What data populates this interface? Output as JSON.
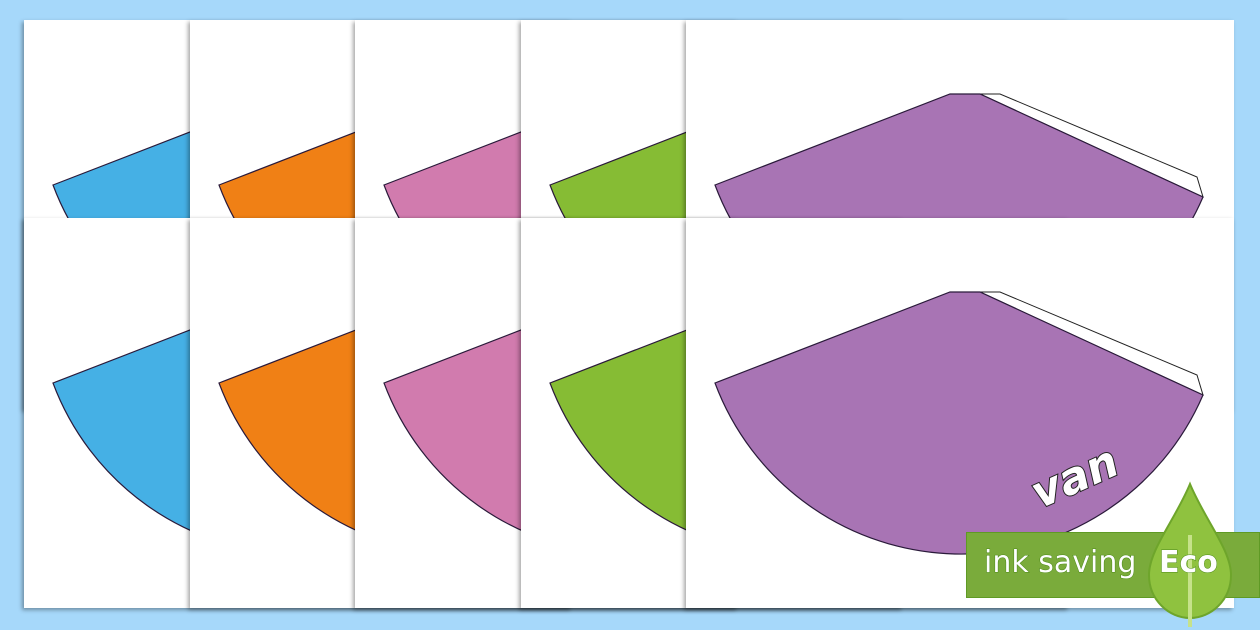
{
  "pages": {
    "colors": [
      "#45b0e5",
      "#f08015",
      "#d17bae",
      "#86bc34",
      "#a874b4"
    ]
  },
  "word": "van",
  "badge": {
    "label": "ink saving",
    "eco": "Eco",
    "color": "#7aab3b",
    "icon": "leaf-drop-icon"
  }
}
